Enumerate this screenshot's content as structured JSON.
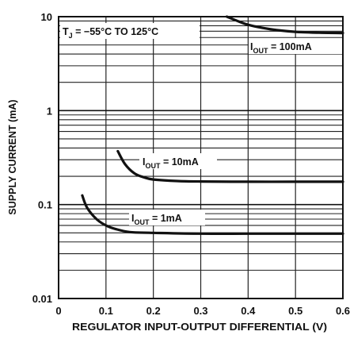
{
  "chart_data": {
    "type": "line",
    "title": "",
    "xlabel": "REGULATOR INPUT-OUTPUT DIFFERENTIAL (V)",
    "ylabel": "SUPPLY CURRENT (mA)",
    "xlim": [
      0,
      0.6
    ],
    "ylim": [
      0.01,
      10
    ],
    "yscale": "log",
    "grid": true,
    "x_ticks": [
      "0",
      "0.1",
      "0.2",
      "0.3",
      "0.4",
      "0.5",
      "0.6"
    ],
    "y_ticks": [
      "0.01",
      "0.1",
      "1",
      "10"
    ],
    "annotations": {
      "tj": {
        "main": "T",
        "sub": "J",
        "rest": " = −55°C TO 125°C"
      },
      "label_100": {
        "main": "I",
        "sub": "OUT",
        "rest": " = 100mA"
      },
      "label_10": {
        "main": "I",
        "sub": "OUT",
        "rest": " = 10mA"
      },
      "label_1": {
        "main": "I",
        "sub": "OUT",
        "rest": " = 1mA"
      }
    },
    "series": [
      {
        "name": "IOUT = 100mA",
        "x": [
          0.355,
          0.38,
          0.4,
          0.43,
          0.46,
          0.5,
          0.55,
          0.6
        ],
        "y": [
          10.0,
          8.9,
          8.2,
          7.6,
          7.2,
          6.9,
          6.75,
          6.7
        ]
      },
      {
        "name": "IOUT = 10mA",
        "x": [
          0.125,
          0.14,
          0.16,
          0.18,
          0.2,
          0.25,
          0.3,
          0.4,
          0.5,
          0.6
        ],
        "y": [
          0.37,
          0.27,
          0.215,
          0.195,
          0.185,
          0.178,
          0.176,
          0.175,
          0.175,
          0.175
        ]
      },
      {
        "name": "IOUT = 1mA",
        "x": [
          0.05,
          0.06,
          0.08,
          0.1,
          0.12,
          0.15,
          0.2,
          0.3,
          0.4,
          0.5,
          0.6
        ],
        "y": [
          0.125,
          0.093,
          0.07,
          0.06,
          0.055,
          0.051,
          0.05,
          0.049,
          0.049,
          0.049,
          0.049
        ]
      }
    ]
  }
}
